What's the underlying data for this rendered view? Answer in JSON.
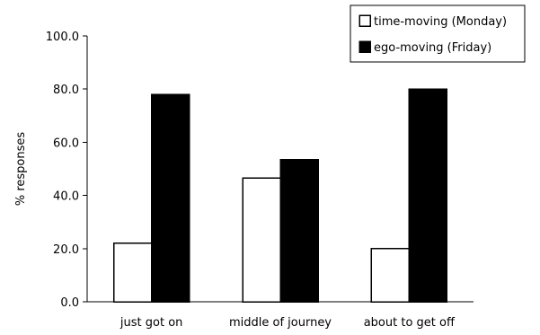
{
  "chart_data": {
    "type": "bar",
    "title": "",
    "xlabel": "",
    "ylabel": "% responses",
    "ylim": [
      0,
      100
    ],
    "yticks": [
      "0.0",
      "20.0",
      "40.0",
      "60.0",
      "80.0",
      "100.0"
    ],
    "ytick_values": [
      0,
      20,
      40,
      60,
      80,
      100
    ],
    "categories": [
      "just got on",
      "middle of journey",
      "about to get off"
    ],
    "series": [
      {
        "name": "time-moving (Monday)",
        "values": [
          22,
          46.5,
          20
        ],
        "color": "#ffffff"
      },
      {
        "name": "ego-moving (Friday)",
        "values": [
          78,
          53.5,
          80
        ],
        "color": "#000000"
      }
    ],
    "legend_position": "top-right",
    "grid": false
  }
}
